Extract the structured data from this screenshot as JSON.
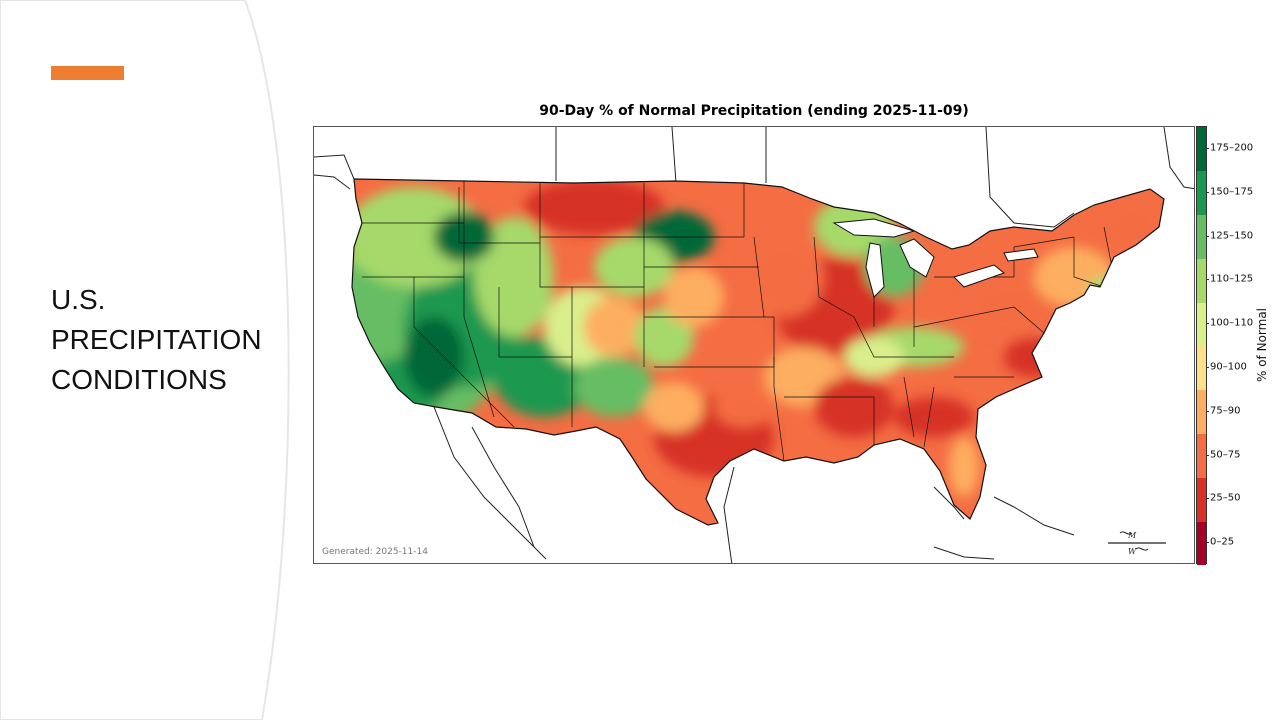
{
  "slide": {
    "title": "U.S.\nPRECIPITATION\nCONDITIONS",
    "accent_color": "#ED7D31"
  },
  "map": {
    "title": "90-Day % of Normal Precipitation (ending 2025-11-09)",
    "generated": "Generated: 2025-11-14",
    "logo": "Meteo Weather",
    "colorbar": {
      "label": "% of Normal",
      "classes": [
        {
          "label": "0–25",
          "color": "#a50026"
        },
        {
          "label": "25–50",
          "color": "#d73027"
        },
        {
          "label": "50–75",
          "color": "#f46d43"
        },
        {
          "label": "75–90",
          "color": "#fdae61"
        },
        {
          "label": "90–100",
          "color": "#fee08b"
        },
        {
          "label": "100–110",
          "color": "#d9ef8b"
        },
        {
          "label": "110–125",
          "color": "#a6d96a"
        },
        {
          "label": "125–150",
          "color": "#66bd63"
        },
        {
          "label": "150–175",
          "color": "#1a9850"
        },
        {
          "label": "175–200",
          "color": "#006837"
        }
      ]
    }
  }
}
